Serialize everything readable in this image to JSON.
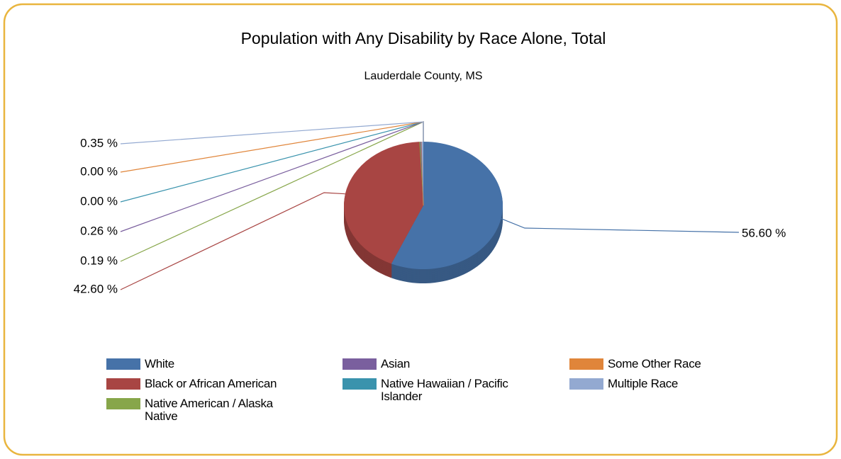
{
  "chart_data": {
    "type": "pie",
    "title": "Population with Any Disability by Race Alone, Total",
    "subtitle": "Lauderdale County, MS",
    "categories": [
      "White",
      "Black or African American",
      "Native American / Alaska Native",
      "Asian",
      "Native Hawaiian / Pacific Islander",
      "Some Other Race",
      "Multiple Race"
    ],
    "values": [
      56.6,
      42.6,
      0.19,
      0.26,
      0.0,
      0.0,
      0.35
    ],
    "value_labels": [
      "56.60 %",
      "42.60 %",
      "0.19 %",
      "0.26 %",
      "0.00 %",
      "0.00 %",
      "0.35 %"
    ],
    "colors": [
      "#4672a8",
      "#a84543",
      "#87a64a",
      "#7a5f9e",
      "#3a93ad",
      "#e0853a",
      "#93a9d1"
    ],
    "legend": "bottom"
  }
}
